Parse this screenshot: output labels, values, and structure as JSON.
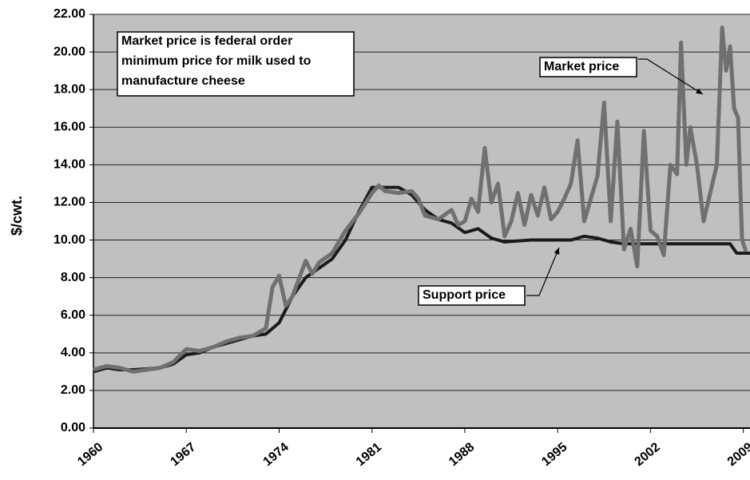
{
  "chart_data": {
    "type": "line",
    "ylabel": "$/cwt.",
    "annotations": [
      {
        "lines": [
          "Market price is federal order",
          "minimum price for milk used to",
          "manufacture cheese"
        ]
      },
      {
        "lines": [
          "Market price"
        ]
      },
      {
        "lines": [
          "Support price"
        ]
      }
    ],
    "xlim": [
      1960,
      2009.5
    ],
    "xticks": [
      1960,
      1967,
      1974,
      1981,
      1988,
      1995,
      2002,
      2009
    ],
    "ylim": [
      0,
      22
    ],
    "yticks": [
      {
        "value": 0,
        "label": "0.00"
      },
      {
        "value": 2,
        "label": "2.00"
      },
      {
        "value": 4,
        "label": "4.00"
      },
      {
        "value": 6,
        "label": "6.00"
      },
      {
        "value": 8,
        "label": "8.00"
      },
      {
        "value": 10,
        "label": "10.00"
      },
      {
        "value": 12,
        "label": "12.00"
      },
      {
        "value": 14,
        "label": "14.00"
      },
      {
        "value": 16,
        "label": "16.00"
      },
      {
        "value": 18,
        "label": "18.00"
      },
      {
        "value": 20,
        "label": "20.00"
      },
      {
        "value": 22,
        "label": "22.00"
      }
    ],
    "grid": true,
    "series": [
      {
        "name": "Support price",
        "color": "#1a1a1a",
        "x": [
          1960,
          1961,
          1962,
          1963,
          1964,
          1965,
          1966,
          1967,
          1968,
          1969,
          1970,
          1971,
          1972,
          1973,
          1974,
          1974.5,
          1975,
          1976,
          1977,
          1978,
          1979,
          1980,
          1981,
          1982,
          1983,
          1984,
          1985,
          1986,
          1987,
          1988,
          1989,
          1990,
          1991,
          1993,
          1996,
          1997,
          1998,
          1999,
          2000,
          2008,
          2008.5,
          2009.5
        ],
        "values": [
          3.0,
          3.2,
          3.1,
          3.1,
          3.15,
          3.2,
          3.4,
          3.9,
          4.0,
          4.3,
          4.5,
          4.7,
          4.9,
          5.0,
          5.6,
          6.3,
          7.0,
          8.0,
          8.5,
          9.0,
          10.0,
          11.5,
          12.8,
          12.8,
          12.8,
          12.4,
          11.6,
          11.1,
          10.9,
          10.4,
          10.6,
          10.1,
          9.9,
          10.0,
          10.0,
          10.2,
          10.1,
          9.9,
          9.8,
          9.8,
          9.3,
          9.3
        ]
      },
      {
        "name": "Market price",
        "color": "#707070",
        "x": [
          1960,
          1961,
          1962,
          1963,
          1964,
          1965,
          1966,
          1967,
          1968,
          1969,
          1970,
          1971,
          1972,
          1973,
          1973.5,
          1974,
          1974.5,
          1975,
          1976,
          1976.5,
          1977,
          1978,
          1979,
          1980,
          1981,
          1981.5,
          1982,
          1983,
          1984,
          1984.5,
          1985,
          1986,
          1987,
          1987.5,
          1988,
          1988.5,
          1989,
          1989.5,
          1990,
          1990.5,
          1991,
          1991.5,
          1992,
          1992.5,
          1993,
          1993.5,
          1994,
          1994.5,
          1995,
          1995.5,
          1996,
          1996.5,
          1997,
          1997.5,
          1998,
          1998.5,
          1999,
          1999.5,
          2000,
          2000.5,
          2001,
          2001.5,
          2002,
          2002.5,
          2003,
          2003.5,
          2004,
          2004.3,
          2004.7,
          2005,
          2005.5,
          2006,
          2006.5,
          2007,
          2007.4,
          2007.7,
          2008,
          2008.3,
          2008.6,
          2008.9,
          2009.2
        ],
        "values": [
          3.1,
          3.3,
          3.2,
          3.0,
          3.1,
          3.2,
          3.5,
          4.2,
          4.1,
          4.3,
          4.6,
          4.8,
          4.9,
          5.3,
          7.5,
          8.1,
          6.5,
          7.0,
          8.9,
          8.2,
          8.8,
          9.3,
          10.5,
          11.4,
          12.5,
          12.9,
          12.6,
          12.5,
          12.6,
          12.2,
          11.3,
          11.1,
          11.6,
          10.8,
          11.0,
          12.2,
          11.5,
          14.9,
          12.0,
          13.0,
          10.2,
          11.0,
          12.5,
          10.8,
          12.4,
          11.3,
          12.8,
          11.1,
          11.5,
          12.2,
          13.0,
          15.3,
          11.0,
          12.2,
          13.4,
          17.3,
          11.0,
          16.3,
          9.5,
          10.6,
          8.6,
          15.8,
          10.5,
          10.2,
          9.2,
          14.0,
          13.5,
          20.5,
          14.0,
          16.0,
          14.0,
          11.0,
          12.5,
          14.0,
          21.3,
          19.0,
          20.3,
          17.0,
          16.5,
          10.0,
          9.4
        ]
      }
    ]
  }
}
